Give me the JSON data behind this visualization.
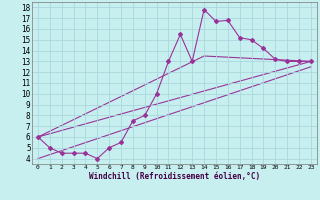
{
  "xlabel": "Windchill (Refroidissement éolien,°C)",
  "bg_color": "#c8eff0",
  "grid_color": "#a8d8dc",
  "line_color": "#993399",
  "xlim": [
    -0.5,
    23.5
  ],
  "ylim": [
    3.5,
    18.5
  ],
  "yticks": [
    4,
    5,
    6,
    7,
    8,
    9,
    10,
    11,
    12,
    13,
    14,
    15,
    16,
    17,
    18
  ],
  "xticks": [
    0,
    1,
    2,
    3,
    4,
    5,
    6,
    7,
    8,
    9,
    10,
    11,
    12,
    13,
    14,
    15,
    16,
    17,
    18,
    19,
    20,
    21,
    22,
    23
  ],
  "series_main": {
    "x": [
      0,
      1,
      2,
      3,
      4,
      5,
      6,
      7,
      8,
      9,
      10,
      11,
      12,
      13,
      14,
      15,
      16,
      17,
      18,
      19,
      20,
      21,
      22,
      23
    ],
    "y": [
      6.0,
      5.0,
      4.5,
      4.5,
      4.5,
      4.0,
      5.0,
      5.5,
      7.5,
      8.0,
      10.0,
      13.0,
      15.5,
      13.0,
      17.8,
      16.7,
      16.8,
      15.2,
      15.0,
      14.2,
      13.2,
      13.0,
      13.0,
      13.0
    ]
  },
  "series_line1": {
    "x": [
      0,
      23
    ],
    "y": [
      6.0,
      13.0
    ]
  },
  "series_line2": {
    "x": [
      0,
      23
    ],
    "y": [
      4.0,
      12.5
    ]
  },
  "series_line3": {
    "x": [
      0,
      14,
      23
    ],
    "y": [
      6.0,
      13.5,
      13.0
    ]
  }
}
